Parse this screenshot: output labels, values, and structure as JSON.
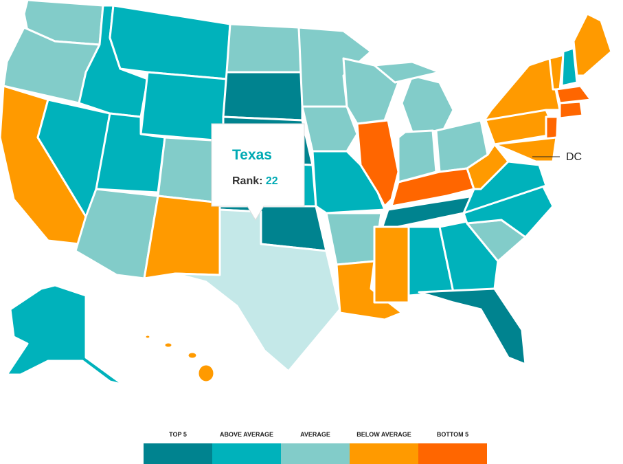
{
  "tooltip": {
    "state": "Texas",
    "rank_label": "Rank:",
    "rank": 22,
    "selected_color": "#c4e8e8"
  },
  "dc_label": "DC",
  "legend": [
    {
      "label": "TOP 5",
      "color": "#00838f"
    },
    {
      "label": "ABOVE AVERAGE",
      "color": "#00b2bb"
    },
    {
      "label": "AVERAGE",
      "color": "#82ccc9"
    },
    {
      "label": "BELOW AVERAGE",
      "color": "#ff9a00"
    },
    {
      "label": "BOTTOM 5",
      "color": "#ff6600"
    }
  ]
}
